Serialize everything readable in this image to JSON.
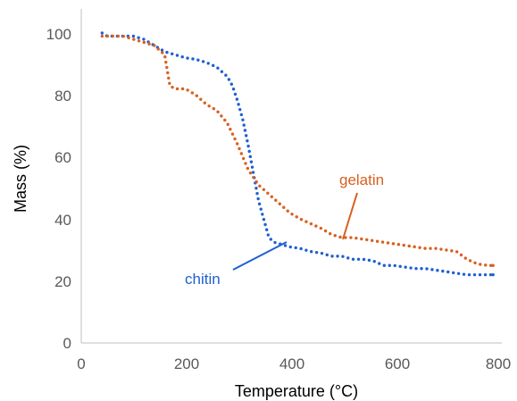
{
  "chart_data": {
    "type": "scatter",
    "title": "",
    "xlabel": "Temperature (°C)",
    "ylabel": "Mass (%)",
    "xlim": [
      0,
      800
    ],
    "ylim": [
      0,
      100
    ],
    "x_ticks": [
      "0",
      "200",
      "400",
      "600",
      "800"
    ],
    "y_ticks": [
      "0",
      "20",
      "40",
      "60",
      "80",
      "100"
    ],
    "grid": false,
    "legend": "none",
    "series": [
      {
        "name": "chitin",
        "color": "#1f5fd1",
        "label_position": "lower-middle",
        "x": [
          40,
          50,
          60,
          80,
          100,
          120,
          140,
          160,
          180,
          200,
          220,
          240,
          260,
          280,
          290,
          300,
          310,
          320,
          330,
          340,
          350,
          360,
          370,
          380,
          400,
          420,
          440,
          460,
          480,
          500,
          520,
          540,
          560,
          580,
          600,
          620,
          640,
          660,
          680,
          700,
          720,
          740,
          760,
          780,
          790
        ],
        "y": [
          100,
          99,
          99,
          99,
          99,
          98,
          96,
          94,
          93,
          92,
          91.5,
          90.5,
          89,
          86,
          83,
          78,
          72,
          64,
          55,
          46,
          40,
          34,
          32.5,
          32,
          31,
          30.5,
          29.5,
          29,
          28,
          28,
          27,
          27,
          26.5,
          25,
          25,
          24.5,
          24,
          24,
          23.5,
          23,
          22.5,
          22,
          22,
          22,
          22
        ]
      },
      {
        "name": "gelatin",
        "color": "#d8601f",
        "label_position": "middle-right",
        "x": [
          40,
          50,
          60,
          80,
          100,
          120,
          140,
          160,
          165,
          170,
          180,
          200,
          220,
          240,
          260,
          280,
          300,
          320,
          340,
          360,
          380,
          400,
          420,
          440,
          460,
          480,
          500,
          520,
          540,
          560,
          580,
          600,
          620,
          640,
          660,
          680,
          700,
          720,
          740,
          760,
          780,
          790
        ],
        "y": [
          99,
          99,
          99,
          99,
          98,
          97,
          96,
          93,
          88,
          83,
          82,
          82,
          80,
          77,
          75,
          71,
          64,
          56,
          51,
          48,
          45,
          42,
          40,
          38.5,
          37,
          35,
          34,
          34,
          33.5,
          33,
          32.5,
          32,
          31.5,
          31,
          30.5,
          30.5,
          30,
          29.5,
          27,
          25.5,
          25,
          25
        ]
      }
    ]
  }
}
